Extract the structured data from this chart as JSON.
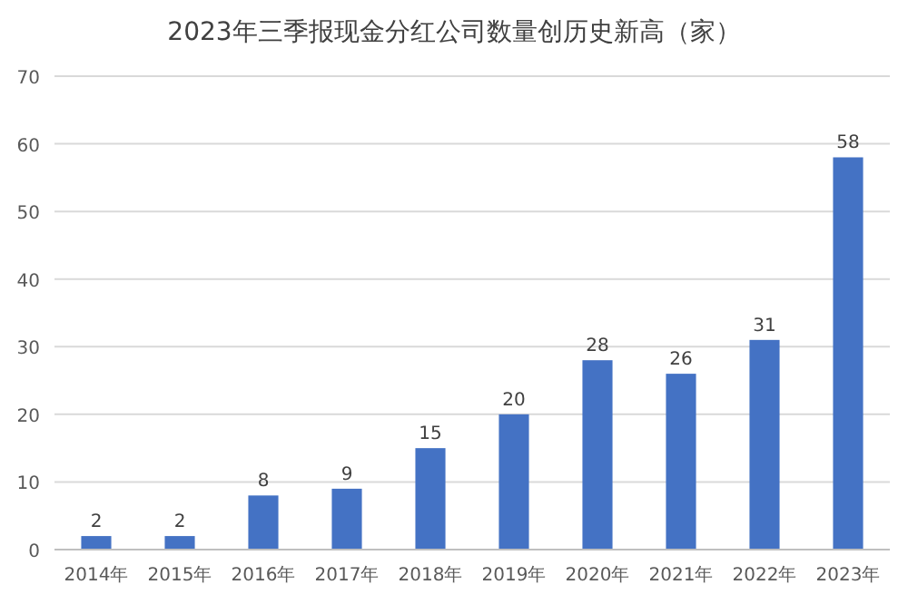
{
  "chart_data": {
    "type": "bar",
    "title": "2023年三季报现金分红公司数量创历史新高（家）",
    "categories": [
      "2014年",
      "2015年",
      "2016年",
      "2017年",
      "2018年",
      "2019年",
      "2020年",
      "2021年",
      "2022年",
      "2023年"
    ],
    "values": [
      2,
      2,
      8,
      9,
      15,
      20,
      28,
      26,
      31,
      58
    ],
    "color": "#4472c4",
    "ylim": [
      0,
      70
    ],
    "yticks": [
      0,
      10,
      20,
      30,
      40,
      50,
      60,
      70
    ],
    "grid": "y",
    "data_labels": true
  }
}
